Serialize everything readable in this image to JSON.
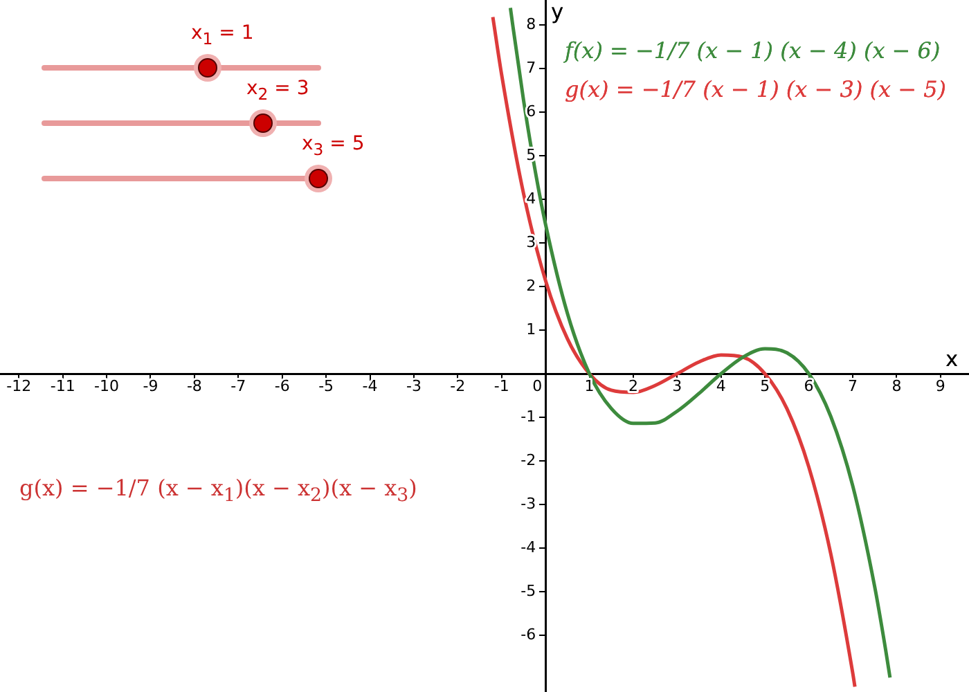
{
  "chart_data": {
    "type": "line",
    "xlabel": "x",
    "ylabel": "y",
    "xlim": [
      -12.43,
      9.65
    ],
    "ylim": [
      -7.3,
      8.57
    ],
    "xticks": [
      -12,
      -11,
      -10,
      -9,
      -8,
      -7,
      -6,
      -5,
      -4,
      -3,
      -2,
      -1,
      0,
      1,
      2,
      3,
      4,
      5,
      6,
      7,
      8,
      9
    ],
    "yticks": [
      -6,
      -5,
      -4,
      -3,
      -2,
      -1,
      {
        "value": 0,
        "label": null
      },
      1,
      2,
      3,
      4,
      5,
      6,
      7,
      8
    ],
    "grid": false,
    "legend": false,
    "marker": "none",
    "line_style": "solid",
    "series": [
      {
        "name": "f(x) = −1/7 (x − 1) (x − 4) (x − 6)",
        "color": "#3d8b3d",
        "x": [
          -0.8,
          -0.75,
          -0.5,
          -0.25,
          0,
          0.5,
          1,
          1.5,
          2,
          2.5,
          3,
          3.5,
          4,
          4.5,
          5,
          5.5,
          6,
          6.5,
          7,
          7.5,
          7.75,
          7.85
        ],
        "values": [
          8.39,
          8.02,
          6.27,
          4.74,
          3.43,
          1.38,
          0,
          -0.8,
          -1.14,
          -1.13,
          -0.86,
          -0.45,
          0,
          0.38,
          0.57,
          0.48,
          0,
          -0.98,
          -2.57,
          -4.88,
          -6.33,
          -6.97
        ]
      },
      {
        "name": "g(x) = −1/7 (x − 1) (x − 3) (x − 5)",
        "color": "#dd3b3b",
        "x": [
          -1.2,
          -1,
          -0.5,
          0,
          0.5,
          1,
          1.5,
          2,
          2.5,
          3,
          3.5,
          4,
          4.5,
          5,
          5.5,
          6,
          6.5,
          7,
          7.05
        ],
        "values": [
          8.18,
          6.86,
          4.13,
          2.14,
          0.8,
          0,
          -0.38,
          -0.43,
          -0.27,
          0,
          0.27,
          0.43,
          0.38,
          0,
          -0.8,
          -2.14,
          -4.13,
          -6.86,
          -7.18
        ]
      }
    ],
    "annotations": [
      "x$_{1}$ = 1",
      "x$_{2}$ = 3",
      "x$_{3}$ = 5",
      "g(x) = −1/7 (x − x$_{1}$)(x − x$_{2}$)(x − x$_{3}$)"
    ]
  }
}
